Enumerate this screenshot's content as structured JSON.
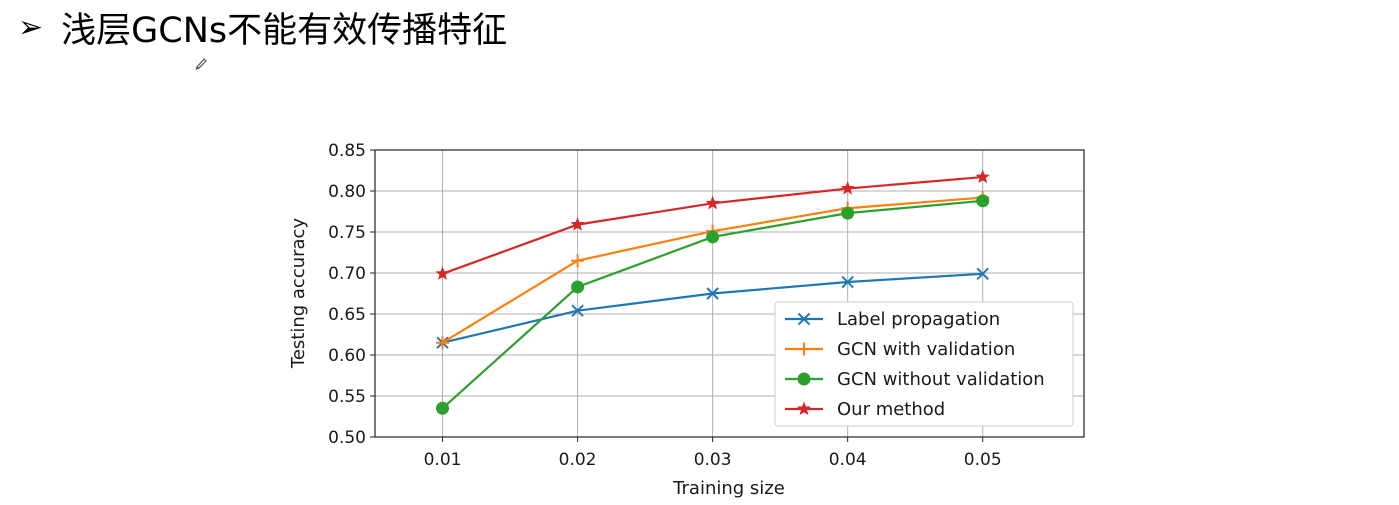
{
  "slide": {
    "bullet": "➢",
    "title": "浅层GCNs不能有效传播特征"
  },
  "chart_data": {
    "type": "line",
    "x": [
      0.01,
      0.02,
      0.03,
      0.04,
      0.05
    ],
    "x_tick_labels": [
      "0.01",
      "0.02",
      "0.03",
      "0.04",
      "0.05"
    ],
    "xlim": [
      0.005,
      0.0575
    ],
    "ylim": [
      0.5,
      0.85
    ],
    "y_ticks": [
      0.5,
      0.55,
      0.6,
      0.65,
      0.7,
      0.75,
      0.8,
      0.85
    ],
    "y_tick_labels": [
      "0.50",
      "0.55",
      "0.60",
      "0.65",
      "0.70",
      "0.75",
      "0.80",
      "0.85"
    ],
    "xlabel": "Training size",
    "ylabel": "Testing accuracy",
    "grid": true,
    "legend_position": "lower-right",
    "series": [
      {
        "name": "Label propagation",
        "color": "#1f77b4",
        "marker": "x",
        "values": [
          0.615,
          0.654,
          0.675,
          0.689,
          0.699
        ]
      },
      {
        "name": "GCN with validation",
        "color": "#ff7f0e",
        "marker": "+",
        "values": [
          0.615,
          0.715,
          0.751,
          0.779,
          0.792
        ]
      },
      {
        "name": "GCN without validation",
        "color": "#2ca02c",
        "marker": "o",
        "values": [
          0.535,
          0.683,
          0.744,
          0.773,
          0.788
        ]
      },
      {
        "name": "Our method",
        "color": "#d62728",
        "marker": "*",
        "values": [
          0.699,
          0.759,
          0.785,
          0.803,
          0.817
        ]
      }
    ]
  }
}
